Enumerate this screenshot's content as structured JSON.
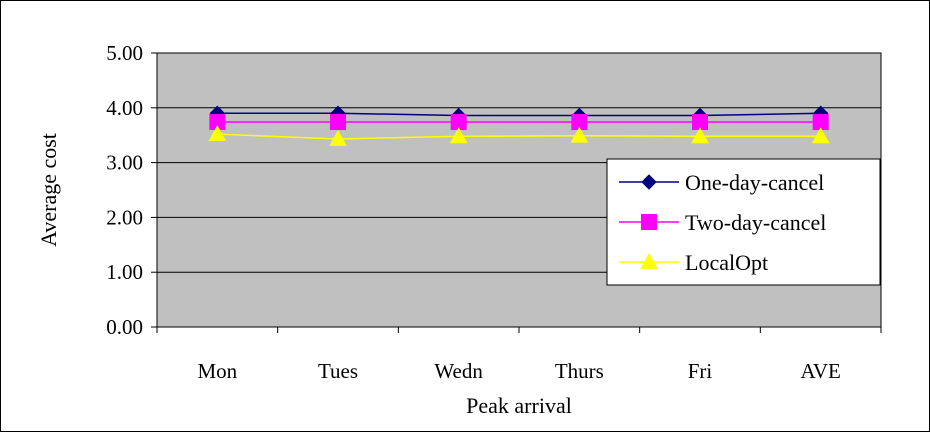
{
  "colors": {
    "plot_background": "#c0c0c0",
    "gridline": "#000000",
    "frame": "#000000",
    "legend_background": "#ffffff"
  },
  "chart_data": {
    "type": "line",
    "title": "",
    "xlabel": "Peak arrival",
    "ylabel": "Average cost",
    "categories": [
      "Mon",
      "Tues",
      "Wedn",
      "Thurs",
      "Fri",
      "AVE"
    ],
    "ylim": [
      0,
      5
    ],
    "yticks": [
      "0.00",
      "1.00",
      "2.00",
      "3.00",
      "4.00",
      "5.00"
    ],
    "grid": "horizontal",
    "legend_position": "right",
    "series": [
      {
        "name": "One-day-cancel",
        "color": "#000080",
        "marker": "diamond",
        "values": [
          3.9,
          3.9,
          3.86,
          3.86,
          3.86,
          3.9
        ]
      },
      {
        "name": "Two-day-cancel",
        "color": "#ff00ff",
        "marker": "square",
        "values": [
          3.74,
          3.74,
          3.74,
          3.74,
          3.74,
          3.74
        ]
      },
      {
        "name": "LocalOpt",
        "color": "#ffff00",
        "marker": "triangle",
        "values": [
          3.52,
          3.43,
          3.48,
          3.49,
          3.48,
          3.48
        ]
      }
    ]
  }
}
